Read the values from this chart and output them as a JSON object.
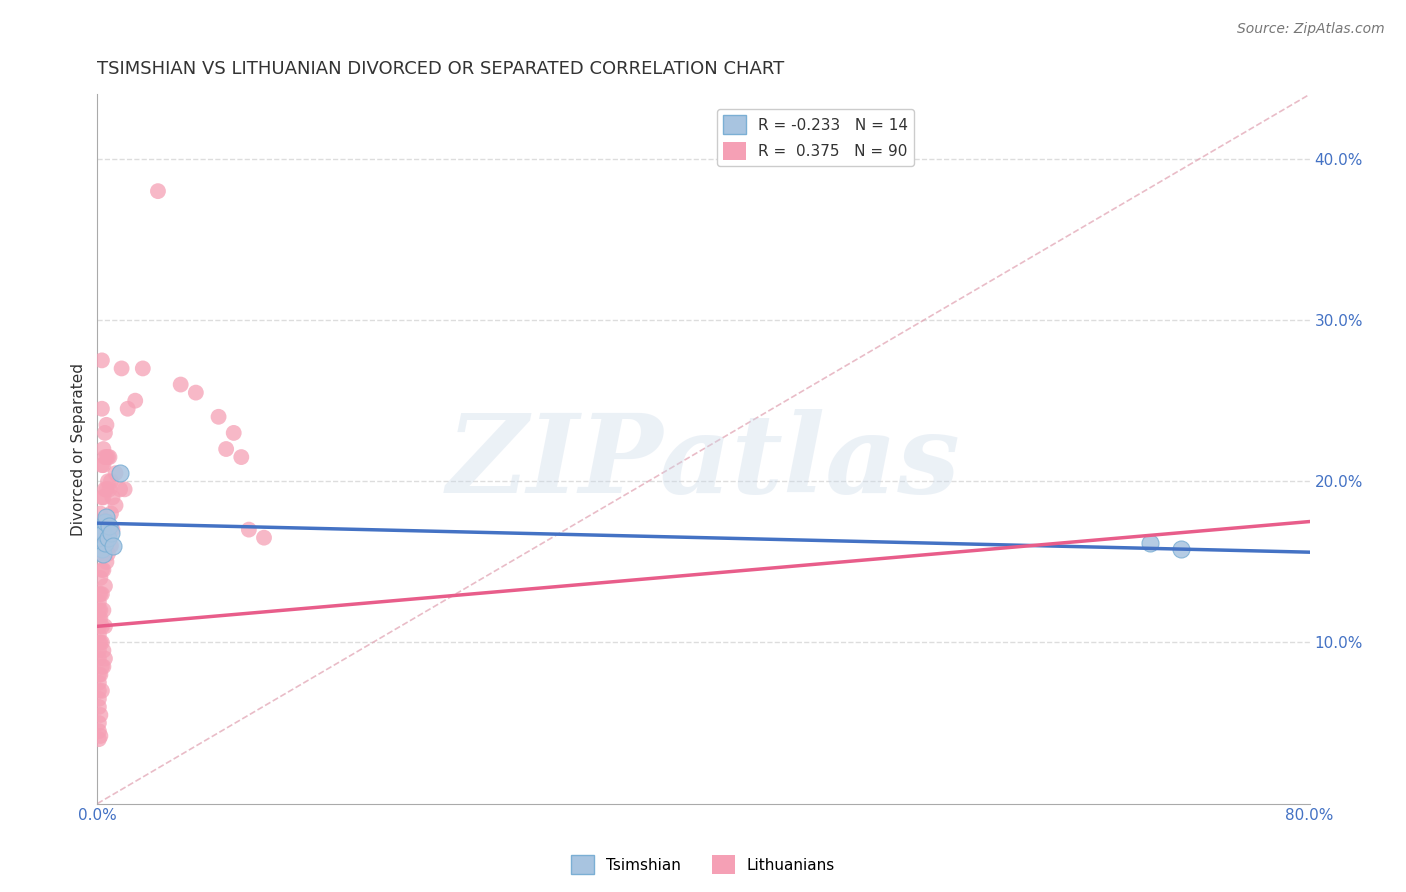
{
  "title": "TSIMSHIAN VS LITHUANIAN DIVORCED OR SEPARATED CORRELATION CHART",
  "source": "Source: ZipAtlas.com",
  "ylabel": "Divorced or Separated",
  "watermark": "ZIPatlas",
  "xlim": [
    0.0,
    0.8
  ],
  "ylim": [
    0.0,
    0.44
  ],
  "xticks": [
    0.0,
    0.16,
    0.32,
    0.48,
    0.64,
    0.8
  ],
  "xtick_labels": [
    "0.0%",
    "",
    "",
    "",
    "",
    "80.0%"
  ],
  "yticks": [
    0.1,
    0.2,
    0.3,
    0.4
  ],
  "ytick_labels": [
    "10.0%",
    "20.0%",
    "30.0%",
    "40.0%"
  ],
  "legend1_label": "R = -0.233   N = 14",
  "legend2_label": "R =  0.375   N = 90",
  "tsimshian_color": "#a8c4e0",
  "tsimshian_edge": "#7bafd4",
  "lithuanian_color": "#f5a0b5",
  "trend_blue_color": "#4472c4",
  "trend_pink_color": "#e85d8a",
  "ref_line_color": "#e0a0b0",
  "grid_color": "#dddddd",
  "background_color": "#ffffff",
  "tick_color": "#4472c4",
  "title_fontsize": 13,
  "axis_label_fontsize": 11,
  "tick_fontsize": 11,
  "legend_fontsize": 11,
  "source_fontsize": 10,
  "tsimshian_points": [
    [
      0.003,
      0.17
    ],
    [
      0.003,
      0.158
    ],
    [
      0.004,
      0.155
    ],
    [
      0.004,
      0.168
    ],
    [
      0.005,
      0.175
    ],
    [
      0.005,
      0.162
    ],
    [
      0.006,
      0.178
    ],
    [
      0.007,
      0.165
    ],
    [
      0.008,
      0.172
    ],
    [
      0.009,
      0.168
    ],
    [
      0.01,
      0.16
    ],
    [
      0.015,
      0.205
    ],
    [
      0.695,
      0.162
    ],
    [
      0.715,
      0.158
    ]
  ],
  "lithuanian_points": [
    [
      0.001,
      0.04
    ],
    [
      0.001,
      0.045
    ],
    [
      0.001,
      0.05
    ],
    [
      0.001,
      0.06
    ],
    [
      0.001,
      0.065
    ],
    [
      0.001,
      0.07
    ],
    [
      0.001,
      0.075
    ],
    [
      0.001,
      0.08
    ],
    [
      0.001,
      0.09
    ],
    [
      0.001,
      0.095
    ],
    [
      0.001,
      0.1
    ],
    [
      0.001,
      0.105
    ],
    [
      0.001,
      0.11
    ],
    [
      0.001,
      0.115
    ],
    [
      0.001,
      0.12
    ],
    [
      0.001,
      0.125
    ],
    [
      0.001,
      0.13
    ],
    [
      0.002,
      0.042
    ],
    [
      0.002,
      0.055
    ],
    [
      0.002,
      0.08
    ],
    [
      0.002,
      0.1
    ],
    [
      0.002,
      0.115
    ],
    [
      0.002,
      0.12
    ],
    [
      0.002,
      0.13
    ],
    [
      0.002,
      0.14
    ],
    [
      0.002,
      0.155
    ],
    [
      0.002,
      0.165
    ],
    [
      0.002,
      0.18
    ],
    [
      0.003,
      0.07
    ],
    [
      0.003,
      0.085
    ],
    [
      0.003,
      0.1
    ],
    [
      0.003,
      0.11
    ],
    [
      0.003,
      0.13
    ],
    [
      0.003,
      0.145
    ],
    [
      0.003,
      0.16
    ],
    [
      0.003,
      0.175
    ],
    [
      0.003,
      0.19
    ],
    [
      0.003,
      0.21
    ],
    [
      0.003,
      0.245
    ],
    [
      0.003,
      0.275
    ],
    [
      0.004,
      0.085
    ],
    [
      0.004,
      0.095
    ],
    [
      0.004,
      0.12
    ],
    [
      0.004,
      0.145
    ],
    [
      0.004,
      0.16
    ],
    [
      0.004,
      0.175
    ],
    [
      0.004,
      0.19
    ],
    [
      0.004,
      0.21
    ],
    [
      0.004,
      0.22
    ],
    [
      0.005,
      0.09
    ],
    [
      0.005,
      0.11
    ],
    [
      0.005,
      0.135
    ],
    [
      0.005,
      0.155
    ],
    [
      0.005,
      0.175
    ],
    [
      0.005,
      0.195
    ],
    [
      0.005,
      0.215
    ],
    [
      0.005,
      0.23
    ],
    [
      0.006,
      0.15
    ],
    [
      0.006,
      0.17
    ],
    [
      0.006,
      0.195
    ],
    [
      0.006,
      0.215
    ],
    [
      0.006,
      0.235
    ],
    [
      0.007,
      0.155
    ],
    [
      0.007,
      0.175
    ],
    [
      0.007,
      0.2
    ],
    [
      0.007,
      0.215
    ],
    [
      0.008,
      0.17
    ],
    [
      0.008,
      0.195
    ],
    [
      0.008,
      0.215
    ],
    [
      0.009,
      0.16
    ],
    [
      0.009,
      0.18
    ],
    [
      0.009,
      0.2
    ],
    [
      0.01,
      0.17
    ],
    [
      0.01,
      0.19
    ],
    [
      0.012,
      0.185
    ],
    [
      0.012,
      0.205
    ],
    [
      0.015,
      0.195
    ],
    [
      0.016,
      0.27
    ],
    [
      0.018,
      0.195
    ],
    [
      0.02,
      0.245
    ],
    [
      0.025,
      0.25
    ],
    [
      0.03,
      0.27
    ],
    [
      0.04,
      0.38
    ],
    [
      0.055,
      0.26
    ],
    [
      0.065,
      0.255
    ],
    [
      0.08,
      0.24
    ],
    [
      0.085,
      0.22
    ],
    [
      0.09,
      0.23
    ],
    [
      0.095,
      0.215
    ],
    [
      0.1,
      0.17
    ],
    [
      0.11,
      0.165
    ]
  ],
  "tsim_trend_x": [
    0.0,
    0.8
  ],
  "tsim_trend_y": [
    0.174,
    0.156
  ],
  "lith_trend_x": [
    0.0,
    0.8
  ],
  "lith_trend_y": [
    0.11,
    0.175
  ]
}
